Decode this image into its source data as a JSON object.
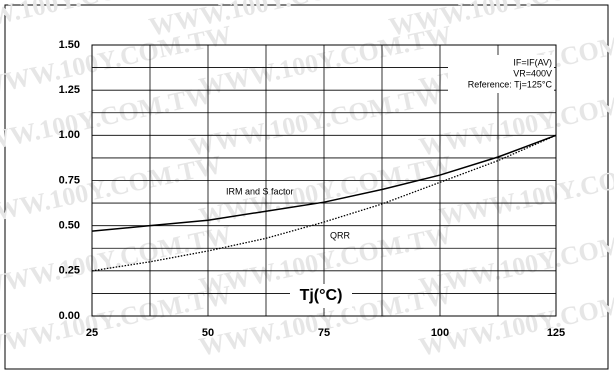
{
  "chart_data": {
    "type": "line",
    "watermark": "WWW.100Y.COM.TW",
    "x_label": "Tj(°C)",
    "notes": [
      "IF=IF(AV)",
      "VR=400V",
      "Reference: Tj=125°C"
    ],
    "x": [
      25,
      37.5,
      50,
      62.5,
      75,
      87.5,
      100,
      112.5,
      125
    ],
    "series": [
      {
        "name": "IRM and S factor",
        "color": "#000000",
        "dash": "solid",
        "values": [
          0.47,
          0.5,
          0.53,
          0.58,
          0.63,
          0.7,
          0.78,
          0.88,
          1.0
        ]
      },
      {
        "name": "QRR",
        "color": "#000000",
        "dash": "dotted",
        "values": [
          0.25,
          0.3,
          0.36,
          0.43,
          0.52,
          0.62,
          0.74,
          0.86,
          1.0
        ]
      }
    ],
    "xlim": [
      25,
      125
    ],
    "xticks": [
      25,
      50,
      75,
      100,
      125
    ],
    "ylim": [
      0,
      1.5
    ],
    "yticks": [
      {
        "value": 0,
        "label": "0.00"
      },
      0.25,
      {
        "value": 0.5,
        "label": "0.50"
      },
      0.75,
      {
        "value": 1,
        "label": "1.00"
      },
      1.25,
      {
        "value": 1.5,
        "label": "1.50"
      }
    ],
    "grid": true,
    "minor_grid": true
  }
}
